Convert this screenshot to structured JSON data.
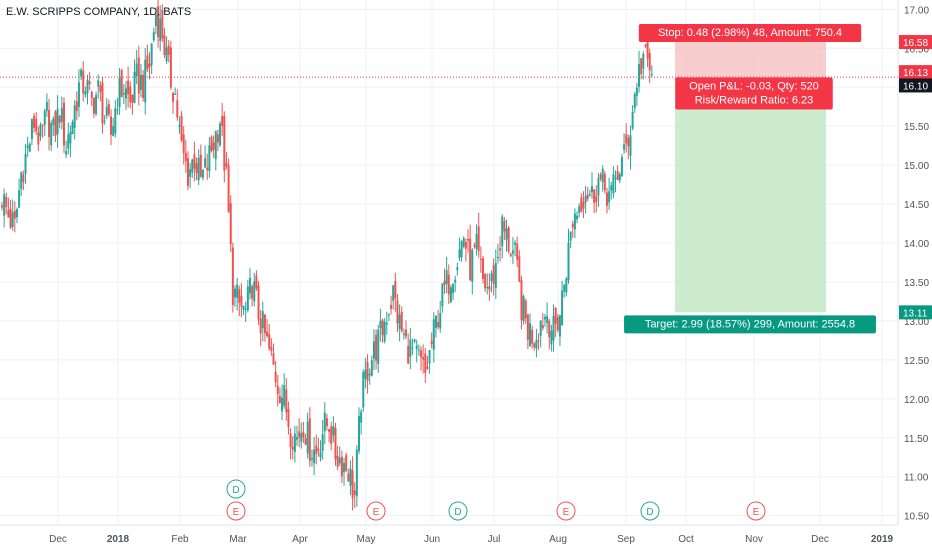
{
  "header": {
    "symbol_title": "E.W. SCRIPPS COMPANY, 1D, BATS"
  },
  "colors": {
    "up": "#26a69a",
    "down": "#ef5350",
    "stop_zone": "#f6c1c1",
    "target_zone": "#c8e9c8",
    "stop_label": "#f23645",
    "target_label": "#089981",
    "grid": "#eef0f3",
    "axis_text": "#50535e"
  },
  "chart_data": {
    "type": "candlestick",
    "ylim": [
      10.38,
      17.12
    ],
    "yticks": [
      "17.00",
      "16.50",
      "16.00",
      "15.50",
      "15.00",
      "14.50",
      "14.00",
      "13.50",
      "13.00",
      "12.50",
      "12.00",
      "11.50",
      "11.00",
      "10.50"
    ],
    "xtick_labels": [
      "Dec",
      "2018",
      "Feb",
      "Mar",
      "Apr",
      "May",
      "Jun",
      "Jul",
      "Aug",
      "Sep",
      "Oct",
      "Nov",
      "Dec",
      "2019"
    ],
    "price_labels": [
      {
        "text": "16.58",
        "value": 16.58,
        "style": "stop"
      },
      {
        "text": "16.13",
        "value": 16.13,
        "style": "current"
      },
      {
        "text": "16.10",
        "value": 16.1,
        "style": "dark"
      },
      {
        "text": "13.11",
        "value": 13.11,
        "style": "target"
      }
    ],
    "position": {
      "entry": 16.1,
      "stop": 16.58,
      "target": 13.11,
      "stop_text": "Stop: 0.48 (2.98%) 48, Amount: 750.4",
      "pnl_text": "Open P&L: -0.03, Qty: 520",
      "rr_text": "Risk/Reward Ratio: 6.23",
      "target_text": "Target: 2.99 (18.57%) 299, Amount: 2554.8"
    },
    "events": [
      {
        "letter": "D",
        "kind": "dividend",
        "month_pos": "Mar"
      },
      {
        "letter": "E",
        "kind": "earnings",
        "month_pos": "Mar"
      },
      {
        "letter": "E",
        "kind": "earnings",
        "month_pos": "May"
      },
      {
        "letter": "D",
        "kind": "dividend",
        "month_pos": "Jun"
      },
      {
        "letter": "E",
        "kind": "earnings",
        "month_pos": "Aug"
      },
      {
        "letter": "D",
        "kind": "dividend",
        "month_pos": "Sep"
      },
      {
        "letter": "E",
        "kind": "earnings",
        "month_pos": "Nov"
      }
    ],
    "close_path": [
      [
        0,
        14.6
      ],
      [
        3,
        14.35
      ],
      [
        6,
        14.2
      ],
      [
        9,
        14.9
      ],
      [
        12,
        15.2
      ],
      [
        15,
        15.55
      ],
      [
        18,
        15.3
      ],
      [
        21,
        15.65
      ],
      [
        24,
        15.4
      ],
      [
        27,
        15.7
      ],
      [
        30,
        15.25
      ],
      [
        33,
        15.6
      ],
      [
        36,
        16.0
      ],
      [
        39,
        16.05
      ],
      [
        42,
        15.8
      ],
      [
        45,
        15.95
      ],
      [
        48,
        15.6
      ],
      [
        51,
        15.4
      ],
      [
        54,
        15.9
      ],
      [
        57,
        16.0
      ],
      [
        60,
        15.8
      ],
      [
        63,
        16.1
      ],
      [
        66,
        16.05
      ],
      [
        69,
        16.3
      ],
      [
        72,
        16.95
      ],
      [
        75,
        16.7
      ],
      [
        78,
        16.2
      ],
      [
        81,
        15.9
      ],
      [
        84,
        15.2
      ],
      [
        87,
        14.9
      ],
      [
        90,
        15.1
      ],
      [
        93,
        14.8
      ],
      [
        96,
        15.0
      ],
      [
        99,
        15.3
      ],
      [
        102,
        15.6
      ],
      [
        105,
        14.8
      ],
      [
        108,
        13.4
      ],
      [
        111,
        13.2
      ],
      [
        114,
        13.1
      ],
      [
        117,
        13.5
      ],
      [
        120,
        13.1
      ],
      [
        123,
        12.8
      ],
      [
        126,
        12.5
      ],
      [
        129,
        12.2
      ],
      [
        132,
        12.0
      ],
      [
        135,
        11.6
      ],
      [
        138,
        11.5
      ],
      [
        141,
        11.7
      ],
      [
        144,
        11.4
      ],
      [
        147,
        11.3
      ],
      [
        150,
        11.6
      ],
      [
        153,
        11.7
      ],
      [
        156,
        11.3
      ],
      [
        159,
        11.2
      ],
      [
        162,
        11.1
      ],
      [
        165,
        10.75
      ],
      [
        168,
        12.0
      ],
      [
        171,
        12.4
      ],
      [
        174,
        12.6
      ],
      [
        177,
        12.8
      ],
      [
        180,
        13.1
      ],
      [
        183,
        13.35
      ],
      [
        186,
        12.95
      ],
      [
        189,
        12.7
      ],
      [
        192,
        12.6
      ],
      [
        195,
        12.5
      ],
      [
        198,
        12.3
      ],
      [
        201,
        12.7
      ],
      [
        204,
        13.1
      ],
      [
        207,
        13.4
      ],
      [
        210,
        13.6
      ],
      [
        213,
        13.8
      ],
      [
        216,
        14.1
      ],
      [
        219,
        13.7
      ],
      [
        222,
        13.9
      ],
      [
        225,
        13.5
      ],
      [
        228,
        13.4
      ],
      [
        231,
        13.7
      ],
      [
        234,
        14.2
      ],
      [
        237,
        14.0
      ],
      [
        240,
        13.8
      ],
      [
        243,
        13.2
      ],
      [
        246,
        12.9
      ],
      [
        249,
        12.8
      ],
      [
        252,
        13.0
      ],
      [
        255,
        13.1
      ],
      [
        258,
        12.85
      ],
      [
        261,
        13.1
      ],
      [
        264,
        13.7
      ],
      [
        267,
        14.3
      ],
      [
        270,
        14.5
      ],
      [
        273,
        14.7
      ],
      [
        276,
        14.6
      ],
      [
        279,
        14.8
      ],
      [
        282,
        14.7
      ],
      [
        285,
        14.6
      ],
      [
        288,
        14.9
      ],
      [
        291,
        15.1
      ],
      [
        294,
        15.5
      ],
      [
        297,
        16.1
      ],
      [
        300,
        16.4
      ],
      [
        303,
        16.2
      ]
    ]
  }
}
